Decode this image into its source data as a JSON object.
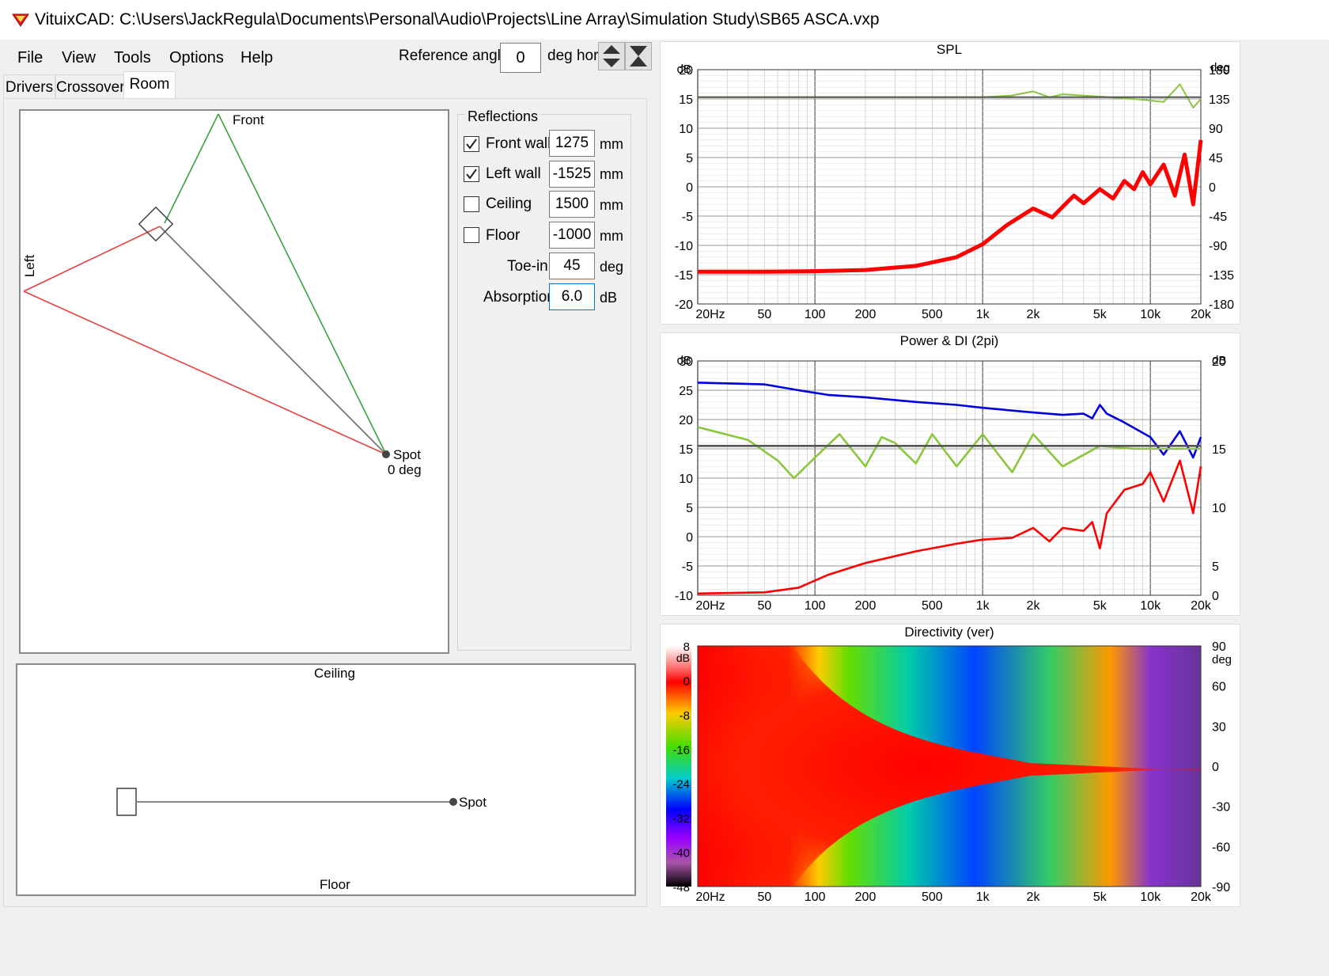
{
  "window": {
    "title": "VituixCAD: C:\\Users\\JackRegula\\Documents\\Personal\\Audio\\Projects\\Line Array\\Simulation Study\\SB65 ASCA.vxp"
  },
  "menu": {
    "file": "File",
    "view": "View",
    "tools": "Tools",
    "options": "Options",
    "help": "Help"
  },
  "toolbar": {
    "ref_label": "Reference angle",
    "ref_value": "0",
    "ref_unit": "deg hor"
  },
  "tabs": {
    "drivers": "Drivers",
    "crossover": "Crossover",
    "room": "Room",
    "active": "Room"
  },
  "room_top": {
    "front": "Front",
    "left": "Left",
    "spot": "Spot",
    "spot_angle": "0 deg"
  },
  "room_side": {
    "ceiling": "Ceiling",
    "floor": "Floor",
    "spot": "Spot"
  },
  "reflections": {
    "title": "Reflections",
    "front_wall": {
      "label": "Front wall",
      "checked": true,
      "value": "1275",
      "unit": "mm"
    },
    "left_wall": {
      "label": "Left wall",
      "checked": true,
      "value": "-1525",
      "unit": "mm"
    },
    "ceiling": {
      "label": "Ceiling",
      "checked": false,
      "value": "1500",
      "unit": "mm"
    },
    "floor": {
      "label": "Floor",
      "checked": false,
      "value": "-1000",
      "unit": "mm"
    },
    "toe_in": {
      "label": "Toe-in",
      "value": "45",
      "unit": "deg"
    },
    "absorption": {
      "label": "Absorption",
      "value": "6.0",
      "unit": "dB"
    }
  },
  "chart_data": [
    {
      "type": "line",
      "title": "SPL",
      "x_ticks": [
        "20Hz",
        "50",
        "100",
        "200",
        "500",
        "1k",
        "2k",
        "5k",
        "10k",
        "20k"
      ],
      "y_left_unit": "dB",
      "y_left_ticks": [
        "20",
        "15",
        "10",
        "5",
        "0",
        "-5",
        "-10",
        "-15",
        "-20"
      ],
      "y_right_unit": "deg",
      "y_right_ticks": [
        "180",
        "135",
        "90",
        "45",
        "0",
        "-45",
        "-90",
        "-135",
        "-180"
      ],
      "xlim": [
        20,
        20000
      ],
      "ylim": [
        -20,
        20
      ],
      "log_x": true,
      "grid": true,
      "series": [
        {
          "color": "#ff0000",
          "x": [
            20,
            50,
            100,
            200,
            400,
            700,
            1000,
            1400,
            2000,
            2600,
            3000,
            3500,
            4000,
            5000,
            6000,
            7000,
            8000,
            9000,
            10000,
            12000,
            14000,
            16000,
            18000,
            20000
          ],
          "y": [
            -14.5,
            -14.5,
            -14.4,
            -14.2,
            -13.5,
            -12,
            -9.8,
            -6.5,
            -3.7,
            -5.2,
            -3.4,
            -1.5,
            -2.8,
            -0.4,
            -2,
            1,
            -0.4,
            2.5,
            0.4,
            3.8,
            -1.5,
            5.5,
            -3,
            8
          ]
        },
        {
          "color": "#8cc63f",
          "x": [
            20,
            100,
            500,
            1000,
            1500,
            2000,
            2500,
            3000,
            5000,
            8000,
            12000,
            15000,
            18000,
            20000
          ],
          "y": [
            15.3,
            15.3,
            15.3,
            15.3,
            15.6,
            16.3,
            15.3,
            15.8,
            15.4,
            15,
            14.5,
            17.5,
            13.5,
            15
          ]
        },
        {
          "color": "#555555",
          "x": [
            20,
            20000
          ],
          "y": [
            15.3,
            15.3
          ]
        }
      ]
    },
    {
      "type": "line",
      "title": "Power & DI (2pi)",
      "x_ticks": [
        "20Hz",
        "50",
        "100",
        "200",
        "500",
        "1k",
        "2k",
        "5k",
        "10k",
        "20k"
      ],
      "y_left_unit": "dB",
      "y_left_ticks": [
        "30",
        "25",
        "20",
        "15",
        "10",
        "5",
        "0",
        "-5",
        "-10"
      ],
      "y_right_unit": "dB",
      "y_right_ticks": [
        "20",
        "15",
        "10",
        "5",
        "0"
      ],
      "xlim": [
        20,
        20000
      ],
      "ylim": [
        -10,
        30
      ],
      "log_x": true,
      "grid": true,
      "series": [
        {
          "color": "#0000dd",
          "x": [
            20,
            50,
            80,
            120,
            200,
            400,
            700,
            1000,
            2000,
            3000,
            4000,
            4500,
            5000,
            5500,
            7000,
            10000,
            12000,
            15000,
            18000,
            20000
          ],
          "y": [
            26.3,
            26,
            25,
            24.2,
            23.8,
            23,
            22.5,
            22,
            21.2,
            20.8,
            21,
            20.2,
            22.5,
            21,
            19.5,
            17,
            14,
            18,
            13.5,
            17
          ]
        },
        {
          "color": "#8cc63f",
          "x": [
            20,
            40,
            60,
            75,
            100,
            140,
            200,
            250,
            300,
            400,
            500,
            700,
            1000,
            1500,
            2000,
            3000,
            5000,
            8000,
            12000,
            20000
          ],
          "y": [
            18.7,
            16.5,
            13,
            10,
            13.5,
            17.5,
            12,
            17,
            16,
            12.5,
            17.5,
            12,
            17.5,
            11,
            17.5,
            12,
            15.5,
            15,
            15,
            15
          ]
        },
        {
          "color": "#555555",
          "x": [
            20,
            20000
          ],
          "y": [
            15.5,
            15.5
          ]
        },
        {
          "color": "#ff0000",
          "x": [
            20,
            50,
            80,
            120,
            200,
            400,
            700,
            1000,
            1500,
            2000,
            2500,
            3000,
            4000,
            4500,
            5000,
            5500,
            7000,
            9000,
            10000,
            12000,
            15000,
            18000,
            20000
          ],
          "y": [
            -9.7,
            -9.5,
            -8.7,
            -6.5,
            -4.5,
            -2.5,
            -1.2,
            -0.5,
            -0.2,
            1.5,
            -0.8,
            1.5,
            1,
            2.5,
            -2,
            4,
            8,
            9,
            11,
            6,
            13,
            4,
            12
          ]
        }
      ]
    },
    {
      "type": "heatmap",
      "title": "Directivity (ver)",
      "x_ticks": [
        "20Hz",
        "50",
        "100",
        "200",
        "500",
        "1k",
        "2k",
        "5k",
        "10k",
        "20k"
      ],
      "y_right_unit": "deg",
      "y_right_ticks": [
        "90",
        "60",
        "30",
        "0",
        "-30",
        "-60",
        "-90"
      ],
      "colorbar_unit": "dB",
      "colorbar_ticks": [
        "8",
        "0",
        "-8",
        "-16",
        "-24",
        "-32",
        "-40",
        "-48"
      ],
      "xlim": [
        20,
        20000
      ],
      "ylim": [
        -90,
        90
      ],
      "log_x": true
    }
  ]
}
